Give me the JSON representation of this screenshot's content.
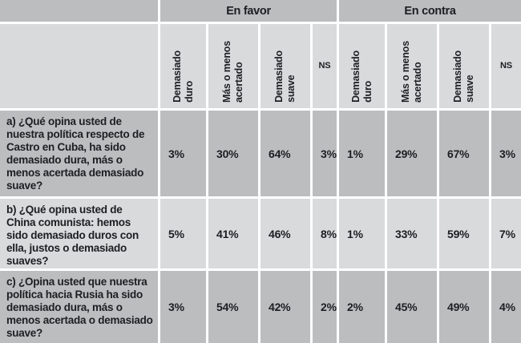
{
  "colors": {
    "dark_cell": "#bcbdbf",
    "light_cell": "#d9dadc",
    "grid_line": "#ffffff",
    "text": "#1d1e21"
  },
  "table": {
    "group_headers": [
      "En favor",
      "En contra"
    ],
    "column_headers": [
      "Demasiado\nduro",
      "Más o menos\nacertado",
      "Demasiado\nsuave",
      "NS",
      "Demasiado\nduro",
      "Más o menos\nacertado",
      "Demasiado\nsuave",
      "NS"
    ],
    "rows": [
      {
        "question": "a) ¿Qué opina usted de nuestra política respecto de Castro en Cuba, ha sido demasiado dura, más o menos acertada demasiado suave?",
        "values": [
          "3%",
          "30%",
          "64%",
          "3%",
          "1%",
          "29%",
          "67%",
          "3%"
        ]
      },
      {
        "question": "b) ¿Qué opina usted de China comunista: hemos sido demasiado duros con ella, justos o demasiado suaves?",
        "values": [
          "5%",
          "41%",
          "46%",
          "8%",
          "1%",
          "33%",
          "59%",
          "7%"
        ]
      },
      {
        "question": "c) ¿Opina usted que nuestra política hacia Rusia ha sido demasiado dura, más o menos acertada o demasiado suave?",
        "values": [
          "3%",
          "54%",
          "42%",
          "2%",
          "2%",
          "45%",
          "49%",
          "4%"
        ]
      }
    ]
  }
}
